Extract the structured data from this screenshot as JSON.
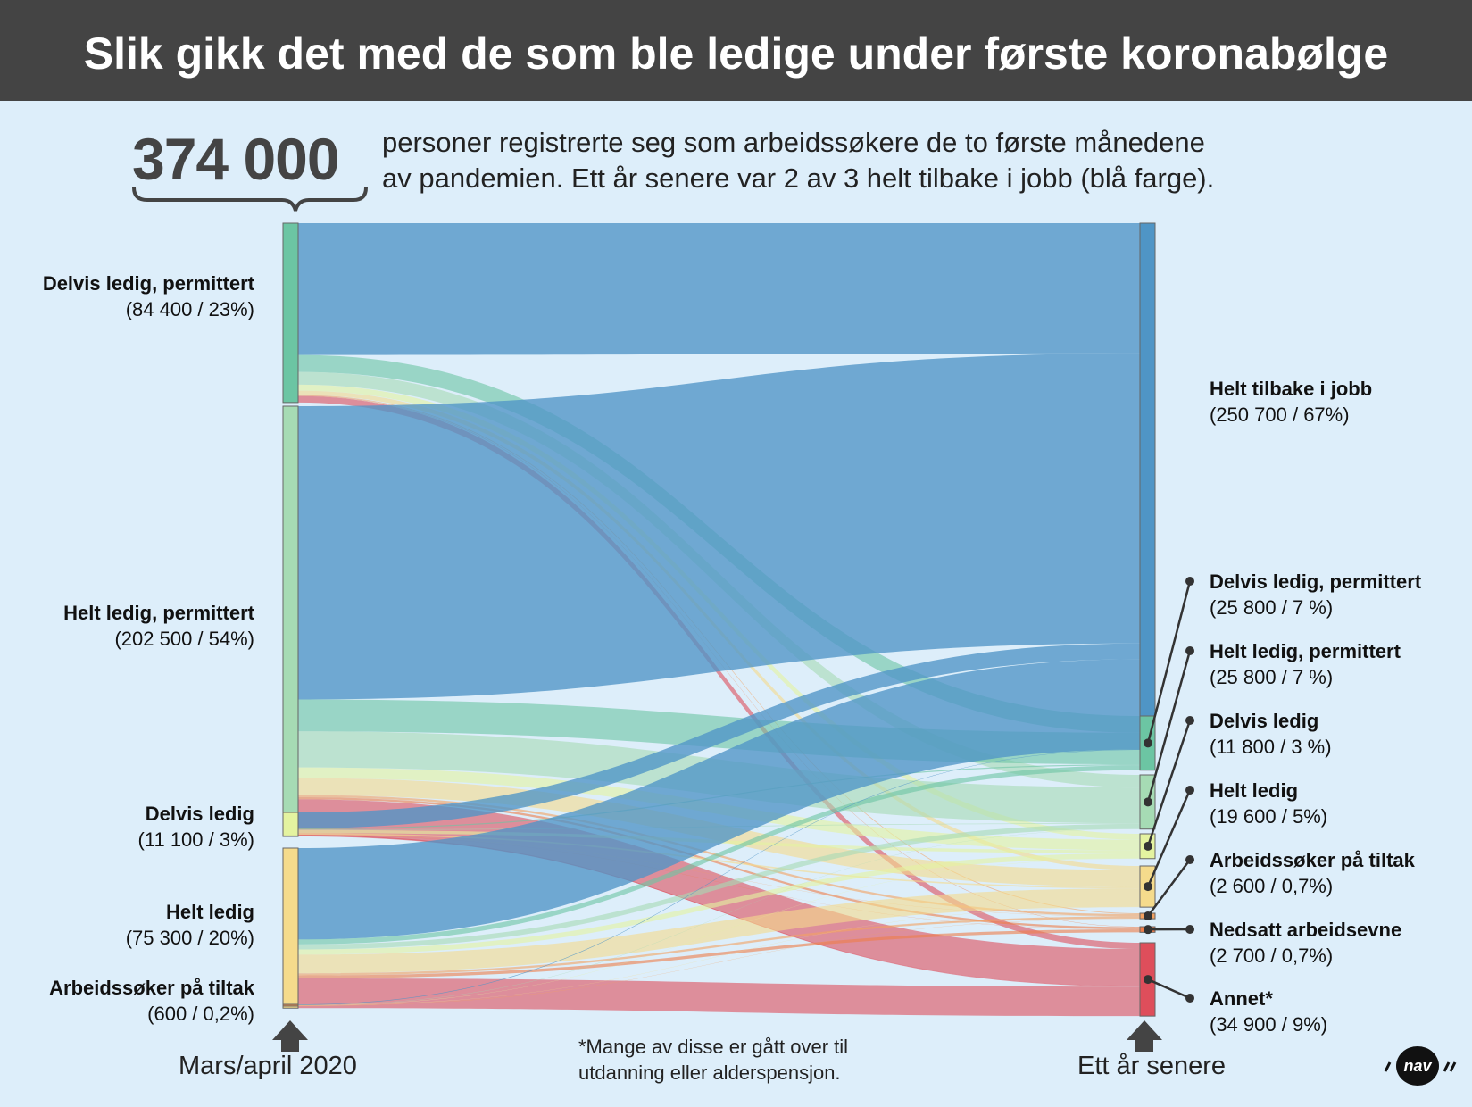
{
  "title": "Slik gikk det med de som ble ledige under første koronabølge",
  "intro": {
    "number": "374 000",
    "line1": "personer registrerte seg som arbeidssøkere de to første månedene",
    "line2": "av pandemien. Ett år senere var 2 av 3 helt tilbake i jobb (blå farge)."
  },
  "axis": {
    "left": "Mars/april 2020",
    "right": "Ett år senere"
  },
  "footnote": {
    "line1": "*Mange av disse er gått over til",
    "line2": "utdanning eller alderspensjon."
  },
  "logo_text": "nav",
  "colors": {
    "jobb": "#4f95c6",
    "delvis_perm": "#6cc5a3",
    "helt_perm": "#a6dbb4",
    "delvis": "#e4f3a0",
    "helt": "#f5db8c",
    "tiltak": "#f4a261",
    "nedsatt": "#ef8a4a",
    "annet": "#de4e5b"
  },
  "chart_data": {
    "type": "sankey",
    "sources": [
      {
        "id": "s_delvis_perm",
        "name": "Delvis ledig, permittert",
        "value_label": "(84 400 / 23%)",
        "value": 84400,
        "color": "#6cc5a3"
      },
      {
        "id": "s_helt_perm",
        "name": "Helt ledig, permittert",
        "value_label": "(202 500 / 54%)",
        "value": 202500,
        "color": "#a6dbb4"
      },
      {
        "id": "s_delvis",
        "name": "Delvis ledig",
        "value_label": "(11 100 / 3%)",
        "value": 11100,
        "color": "#e4f3a0"
      },
      {
        "id": "s_helt",
        "name": "Helt ledig",
        "value_label": "(75 300 / 20%)",
        "value": 75300,
        "color": "#f5db8c"
      },
      {
        "id": "s_tiltak",
        "name": "Arbeidssøker på tiltak",
        "value_label": "(600 / 0,2%)",
        "value": 600,
        "color": "#e08a4a"
      }
    ],
    "targets": [
      {
        "id": "t_jobb",
        "name": "Helt tilbake i jobb",
        "value_label": "(250 700 / 67%)",
        "value": 250700,
        "color": "#4f95c6"
      },
      {
        "id": "t_delvis_perm",
        "name": "Delvis ledig, permittert",
        "value_label": "(25 800 / 7 %)",
        "value": 25800,
        "color": "#6cc5a3"
      },
      {
        "id": "t_helt_perm",
        "name": "Helt ledig, permittert",
        "value_label": "(25 800 / 7 %)",
        "value": 25800,
        "color": "#a6dbb4"
      },
      {
        "id": "t_delvis",
        "name": "Delvis ledig",
        "value_label": "(11 800 / 3 %)",
        "value": 11800,
        "color": "#e4f3a0"
      },
      {
        "id": "t_helt",
        "name": "Helt ledig",
        "value_label": "(19 600 / 5%)",
        "value": 19600,
        "color": "#f5db8c"
      },
      {
        "id": "t_tiltak",
        "name": "Arbeidssøker på tiltak",
        "value_label": "(2 600 / 0,7%)",
        "value": 2600,
        "color": "#f4a261"
      },
      {
        "id": "t_nedsatt",
        "name": "Nedsatt arbeidsevne",
        "value_label": "(2 700 / 0,7%)",
        "value": 2700,
        "color": "#ef7d4a"
      },
      {
        "id": "t_annet",
        "name": "Annet*",
        "value_label": "(34 900 / 9%)",
        "value": 34900,
        "color": "#de4e5b"
      }
    ],
    "flows": [
      {
        "from": "s_delvis_perm",
        "to": "t_jobb",
        "value": 62000
      },
      {
        "from": "s_delvis_perm",
        "to": "t_delvis_perm",
        "value": 8000
      },
      {
        "from": "s_delvis_perm",
        "to": "t_helt_perm",
        "value": 6000
      },
      {
        "from": "s_delvis_perm",
        "to": "t_delvis",
        "value": 2800
      },
      {
        "from": "s_delvis_perm",
        "to": "t_helt",
        "value": 2000
      },
      {
        "from": "s_delvis_perm",
        "to": "t_tiltak",
        "value": 400
      },
      {
        "from": "s_delvis_perm",
        "to": "t_nedsatt",
        "value": 200
      },
      {
        "from": "s_delvis_perm",
        "to": "t_annet",
        "value": 3000
      },
      {
        "from": "s_helt_perm",
        "to": "t_jobb",
        "value": 138000
      },
      {
        "from": "s_helt_perm",
        "to": "t_delvis_perm",
        "value": 15000
      },
      {
        "from": "s_helt_perm",
        "to": "t_helt_perm",
        "value": 17000
      },
      {
        "from": "s_helt_perm",
        "to": "t_delvis",
        "value": 5000
      },
      {
        "from": "s_helt_perm",
        "to": "t_helt",
        "value": 8000
      },
      {
        "from": "s_helt_perm",
        "to": "t_tiltak",
        "value": 1000
      },
      {
        "from": "s_helt_perm",
        "to": "t_nedsatt",
        "value": 1000
      },
      {
        "from": "s_helt_perm",
        "to": "t_annet",
        "value": 17500
      },
      {
        "from": "s_delvis",
        "to": "t_jobb",
        "value": 7500
      },
      {
        "from": "s_delvis",
        "to": "t_delvis_perm",
        "value": 500
      },
      {
        "from": "s_delvis",
        "to": "t_helt_perm",
        "value": 300
      },
      {
        "from": "s_delvis",
        "to": "t_delvis",
        "value": 1500
      },
      {
        "from": "s_delvis",
        "to": "t_helt",
        "value": 700
      },
      {
        "from": "s_delvis",
        "to": "t_tiltak",
        "value": 100
      },
      {
        "from": "s_delvis",
        "to": "t_nedsatt",
        "value": 100
      },
      {
        "from": "s_delvis",
        "to": "t_annet",
        "value": 400
      },
      {
        "from": "s_helt",
        "to": "t_jobb",
        "value": 43000
      },
      {
        "from": "s_helt",
        "to": "t_delvis_perm",
        "value": 2300
      },
      {
        "from": "s_helt",
        "to": "t_helt_perm",
        "value": 2400
      },
      {
        "from": "s_helt",
        "to": "t_delvis",
        "value": 2400
      },
      {
        "from": "s_helt",
        "to": "t_helt",
        "value": 8800
      },
      {
        "from": "s_helt",
        "to": "t_tiltak",
        "value": 1000
      },
      {
        "from": "s_helt",
        "to": "t_nedsatt",
        "value": 1400
      },
      {
        "from": "s_helt",
        "to": "t_annet",
        "value": 14000
      },
      {
        "from": "s_tiltak",
        "to": "t_jobb",
        "value": 200
      },
      {
        "from": "s_tiltak",
        "to": "t_delvis_perm",
        "value": 0
      },
      {
        "from": "s_tiltak",
        "to": "t_helt_perm",
        "value": 100
      },
      {
        "from": "s_tiltak",
        "to": "t_delvis",
        "value": 100
      },
      {
        "from": "s_tiltak",
        "to": "t_helt",
        "value": 100
      },
      {
        "from": "s_tiltak",
        "to": "t_tiltak",
        "value": 100
      },
      {
        "from": "s_tiltak",
        "to": "t_nedsatt",
        "value": 0
      },
      {
        "from": "s_tiltak",
        "to": "t_annet",
        "value": 0
      }
    ]
  }
}
